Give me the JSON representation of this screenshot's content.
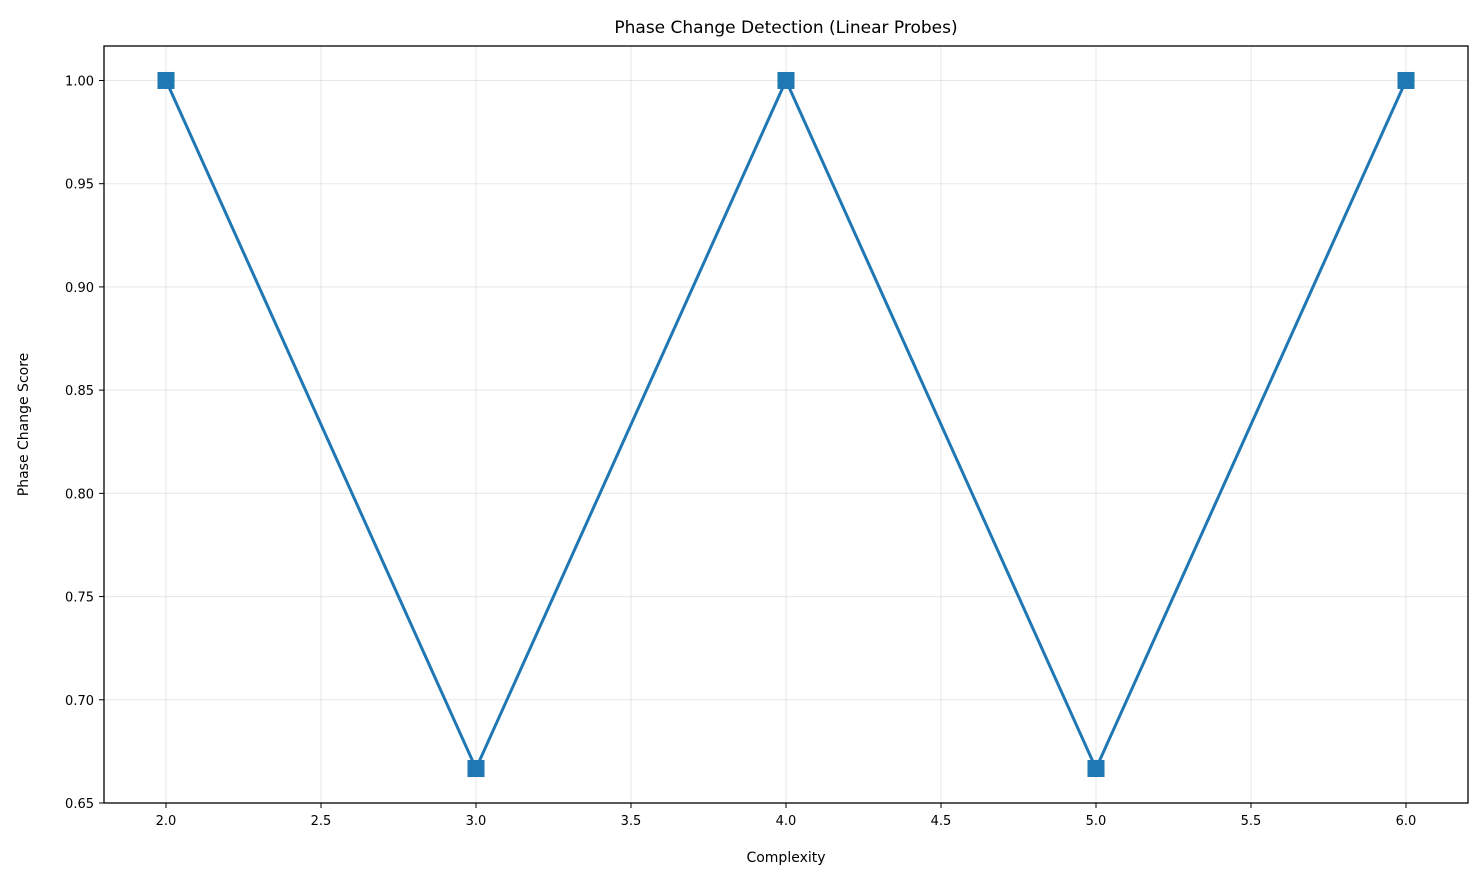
{
  "chart_data": {
    "type": "line",
    "title": "Phase Change Detection (Linear Probes)",
    "xlabel": "Complexity",
    "ylabel": "Phase Change Score",
    "x": [
      2.0,
      3.0,
      4.0,
      5.0,
      6.0
    ],
    "series": [
      {
        "values": [
          1.0,
          0.6667,
          1.0,
          0.6667,
          1.0
        ],
        "color": "#1f77b4",
        "marker": "square"
      }
    ],
    "xlim": [
      1.8,
      6.2
    ],
    "ylim": [
      0.65,
      1.0167
    ],
    "xticks": [
      "2.0",
      "2.5",
      "3.0",
      "3.5",
      "4.0",
      "4.5",
      "5.0",
      "5.5",
      "6.0"
    ],
    "yticks": [
      "0.65",
      "0.70",
      "0.75",
      "0.80",
      "0.85",
      "0.90",
      "0.95",
      "1.00"
    ],
    "grid": true
  }
}
